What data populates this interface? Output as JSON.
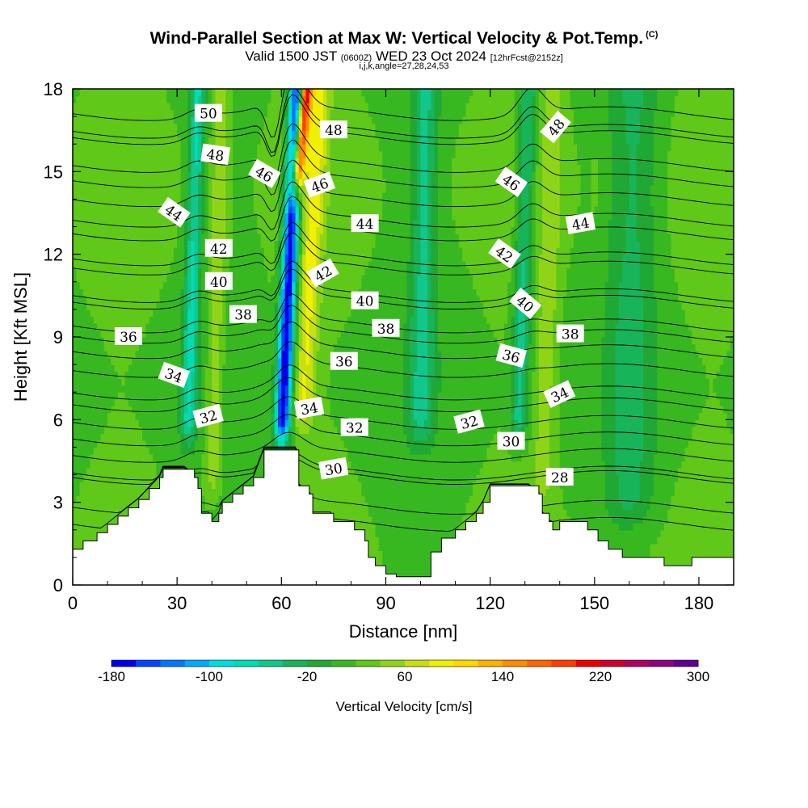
{
  "title": "Wind-Parallel Section at Max W: Vertical Velocity & Pot.Temp.",
  "title_mark": "(C)",
  "subtitle": {
    "valid": "Valid 1500 JST",
    "utc": "(0600Z)",
    "date": "WED 23 Oct 2024",
    "fcst": "[12hrFcst@2152z]"
  },
  "subtitle2": "i,j,k,angle=27,28,24,53",
  "chart_data": {
    "type": "heatmap",
    "description_free": true,
    "xlabel": "Distance [nm]",
    "ylabel": "Height [Kft MSL]",
    "xlim": [
      0,
      190
    ],
    "ylim": [
      0,
      18
    ],
    "x_ticks": [
      0,
      30,
      60,
      90,
      120,
      150,
      180
    ],
    "y_ticks": [
      0,
      3,
      6,
      9,
      12,
      15,
      18
    ],
    "colorbar": {
      "title": "Vertical Velocity [cm/s]",
      "min": -180,
      "max": 300,
      "step": 20,
      "tick_labels": [
        "-180",
        "-100",
        "-20",
        "60",
        "140",
        "220",
        "300"
      ],
      "colors": [
        "#0000ee",
        "#0044ff",
        "#0077ff",
        "#00aaff",
        "#00dddd",
        "#00dcb4",
        "#10c88c",
        "#18b45a",
        "#20a834",
        "#38b820",
        "#60c818",
        "#90d418",
        "#c8e010",
        "#f0f000",
        "#ffd800",
        "#ffb000",
        "#ff8c00",
        "#ff6400",
        "#ff3c00",
        "#ee0000",
        "#d00030",
        "#b00060",
        "#900080",
        "#600090"
      ]
    },
    "terrain": [
      [
        0,
        1.3
      ],
      [
        3,
        1.6
      ],
      [
        7,
        1.9
      ],
      [
        10,
        2.2
      ],
      [
        13,
        2.5
      ],
      [
        16,
        2.8
      ],
      [
        19,
        3.1
      ],
      [
        22,
        3.5
      ],
      [
        25,
        3.9
      ],
      [
        26,
        4.2
      ],
      [
        32,
        4.2
      ],
      [
        35,
        3.9
      ],
      [
        36,
        3.5
      ],
      [
        37,
        2.6
      ],
      [
        39,
        2.6
      ],
      [
        40,
        2.3
      ],
      [
        42,
        2.6
      ],
      [
        43,
        3.0
      ],
      [
        46,
        3.3
      ],
      [
        49,
        3.6
      ],
      [
        52,
        3.9
      ],
      [
        55,
        4.9
      ],
      [
        64,
        4.9
      ],
      [
        65,
        3.6
      ],
      [
        68,
        3.3
      ],
      [
        69,
        2.6
      ],
      [
        74,
        2.6
      ],
      [
        75,
        2.3
      ],
      [
        81,
        2.0
      ],
      [
        84,
        1.6
      ],
      [
        85,
        1.0
      ],
      [
        87,
        0.7
      ],
      [
        90,
        0.4
      ],
      [
        93,
        0.3
      ],
      [
        102,
        0.3
      ],
      [
        103,
        1.2
      ],
      [
        106,
        1.7
      ],
      [
        110,
        2.0
      ],
      [
        113,
        2.3
      ],
      [
        116,
        2.6
      ],
      [
        118,
        3.0
      ],
      [
        120,
        3.6
      ],
      [
        131,
        3.6
      ],
      [
        134,
        3.3
      ],
      [
        135,
        2.6
      ],
      [
        137,
        2.3
      ],
      [
        138,
        2.0
      ],
      [
        140,
        2.3
      ],
      [
        145,
        2.3
      ],
      [
        148,
        2.0
      ],
      [
        151,
        1.6
      ],
      [
        154,
        1.3
      ],
      [
        158,
        1.0
      ],
      [
        165,
        1.0
      ],
      [
        170,
        0.7
      ],
      [
        176,
        0.7
      ],
      [
        178,
        1.0
      ],
      [
        180,
        1.0
      ],
      [
        190,
        1.0
      ]
    ],
    "w_features": [
      {
        "x": 60,
        "width": 2.2,
        "tilt": 4.5,
        "y_from": 5,
        "y_to": 18,
        "w": -180
      },
      {
        "x": 56,
        "width": 2.5,
        "tilt": 3.5,
        "y_from": 6,
        "y_to": 18,
        "w": 20
      },
      {
        "x": 64,
        "width": 1.8,
        "tilt": 3.0,
        "y_from": 14,
        "y_to": 18,
        "w": 240
      },
      {
        "x": 66,
        "width": 3.0,
        "tilt": 5.0,
        "y_from": 5.5,
        "y_to": 18,
        "w": 80
      },
      {
        "x": 40,
        "width": 2.5,
        "tilt": 3.0,
        "y_from": 3,
        "y_to": 18,
        "w": 60
      },
      {
        "x": 33,
        "width": 2.2,
        "tilt": 3.0,
        "y_from": 5,
        "y_to": 18,
        "w": -60
      },
      {
        "x": 135,
        "width": 3.0,
        "tilt": 3.5,
        "y_from": 3,
        "y_to": 18,
        "w": 50
      },
      {
        "x": 128,
        "width": 2.5,
        "tilt": 3.0,
        "y_from": 5,
        "y_to": 18,
        "w": -50
      },
      {
        "x": 100,
        "width": 3.5,
        "tilt": 1.5,
        "y_from": 5,
        "y_to": 18,
        "w": -40
      },
      {
        "x": 160,
        "width": 7.0,
        "tilt": 1.5,
        "y_from": 2,
        "y_to": 18,
        "w": -20
      },
      {
        "x": 150,
        "width": 2.5,
        "tilt": 1.0,
        "y_from": 3,
        "y_to": 18,
        "w": 25
      }
    ],
    "theta_contours": {
      "levels_K_offset": [
        26,
        27,
        28,
        29,
        30,
        31,
        32,
        33,
        34,
        35,
        36,
        37,
        38,
        39,
        40,
        41,
        42,
        43,
        44,
        45,
        46,
        47,
        48,
        49,
        50
      ],
      "labels": [
        {
          "text": "50",
          "x": 39,
          "y": 17.1,
          "angle": 0
        },
        {
          "text": "48",
          "x": 41,
          "y": 15.6,
          "angle": 8
        },
        {
          "text": "48",
          "x": 75,
          "y": 16.5,
          "angle": 0
        },
        {
          "text": "48",
          "x": 139,
          "y": 16.6,
          "angle": -50
        },
        {
          "text": "46",
          "x": 55,
          "y": 14.9,
          "angle": 30
        },
        {
          "text": "46",
          "x": 71,
          "y": 14.5,
          "angle": -20
        },
        {
          "text": "46",
          "x": 126,
          "y": 14.6,
          "angle": 35
        },
        {
          "text": "44",
          "x": 29,
          "y": 13.5,
          "angle": 35
        },
        {
          "text": "44",
          "x": 84,
          "y": 13.1,
          "angle": 0
        },
        {
          "text": "44",
          "x": 146,
          "y": 13.1,
          "angle": -10
        },
        {
          "text": "42",
          "x": 42,
          "y": 12.2,
          "angle": 0
        },
        {
          "text": "42",
          "x": 72,
          "y": 11.3,
          "angle": -30
        },
        {
          "text": "42",
          "x": 124,
          "y": 12.0,
          "angle": 35
        },
        {
          "text": "40",
          "x": 42,
          "y": 11.0,
          "angle": 0
        },
        {
          "text": "40",
          "x": 84,
          "y": 10.3,
          "angle": 0
        },
        {
          "text": "40",
          "x": 130,
          "y": 10.2,
          "angle": 40
        },
        {
          "text": "38",
          "x": 49,
          "y": 9.8,
          "angle": 0
        },
        {
          "text": "38",
          "x": 90,
          "y": 9.3,
          "angle": 0
        },
        {
          "text": "38",
          "x": 143,
          "y": 9.1,
          "angle": 0
        },
        {
          "text": "36",
          "x": 16,
          "y": 9.0,
          "angle": 0
        },
        {
          "text": "36",
          "x": 78,
          "y": 8.1,
          "angle": 0
        },
        {
          "text": "36",
          "x": 126,
          "y": 8.3,
          "angle": 15
        },
        {
          "text": "34",
          "x": 29,
          "y": 7.6,
          "angle": 20
        },
        {
          "text": "34",
          "x": 68,
          "y": 6.4,
          "angle": -10
        },
        {
          "text": "34",
          "x": 140,
          "y": 6.9,
          "angle": -25
        },
        {
          "text": "32",
          "x": 39,
          "y": 6.1,
          "angle": -15
        },
        {
          "text": "32",
          "x": 81,
          "y": 5.7,
          "angle": 0
        },
        {
          "text": "32",
          "x": 114,
          "y": 5.9,
          "angle": -15
        },
        {
          "text": "30",
          "x": 75,
          "y": 4.2,
          "angle": -10
        },
        {
          "text": "30",
          "x": 126,
          "y": 5.2,
          "angle": 0
        },
        {
          "text": "28",
          "x": 140,
          "y": 3.9,
          "angle": 0
        }
      ]
    }
  }
}
